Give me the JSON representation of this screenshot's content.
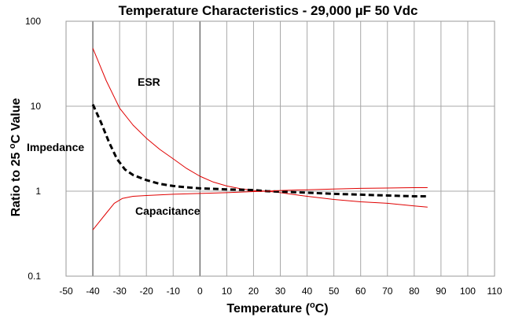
{
  "chart_data": {
    "type": "line",
    "title": "Temperature Characteristics  - 29,000 µF 50 Vdc",
    "xlabel": {
      "prefix": "Temperature (",
      "sup": "o",
      "suffix": "C)"
    },
    "ylabel": {
      "prefix": "Ratio to 25 ",
      "sup": "o",
      "suffix": "C Value"
    },
    "xlim": [
      -50,
      110
    ],
    "ylim": [
      0.1,
      100
    ],
    "y_scale": "log",
    "grid": true,
    "x_ticks": [
      "-50",
      "-40",
      "-30",
      "-20",
      "-10",
      "0",
      "10",
      "20",
      "30",
      "40",
      "50",
      "60",
      "70",
      "80",
      "90",
      "100",
      "110"
    ],
    "y_ticks": [
      {
        "value": 0.1,
        "label": "0.1"
      },
      {
        "value": 1,
        "label": "1"
      },
      {
        "value": 10,
        "label": "10"
      },
      {
        "value": 100,
        "label": "100"
      }
    ],
    "series": [
      {
        "name": "ESR",
        "color": "#e00000",
        "style": "solid",
        "points": [
          [
            -40,
            48
          ],
          [
            -35,
            20
          ],
          [
            -30,
            9.5
          ],
          [
            -25,
            6
          ],
          [
            -20,
            4.2
          ],
          [
            -15,
            3.1
          ],
          [
            -10,
            2.4
          ],
          [
            -5,
            1.85
          ],
          [
            0,
            1.5
          ],
          [
            5,
            1.28
          ],
          [
            10,
            1.15
          ],
          [
            15,
            1.07
          ],
          [
            20,
            1.02
          ],
          [
            25,
            1.0
          ],
          [
            30,
            0.96
          ],
          [
            40,
            0.87
          ],
          [
            50,
            0.8
          ],
          [
            60,
            0.75
          ],
          [
            70,
            0.72
          ],
          [
            80,
            0.67
          ],
          [
            85,
            0.65
          ]
        ]
      },
      {
        "name": "Impedance",
        "color": "#000000",
        "style": "dashed",
        "points": [
          [
            -40,
            10.5
          ],
          [
            -37,
            6.5
          ],
          [
            -34,
            3.8
          ],
          [
            -31,
            2.4
          ],
          [
            -28,
            1.8
          ],
          [
            -25,
            1.55
          ],
          [
            -20,
            1.35
          ],
          [
            -15,
            1.22
          ],
          [
            -10,
            1.15
          ],
          [
            -5,
            1.11
          ],
          [
            0,
            1.08
          ],
          [
            10,
            1.05
          ],
          [
            20,
            1.03
          ],
          [
            25,
            1.0
          ],
          [
            30,
            0.99
          ],
          [
            40,
            0.96
          ],
          [
            50,
            0.93
          ],
          [
            60,
            0.91
          ],
          [
            70,
            0.89
          ],
          [
            80,
            0.87
          ],
          [
            85,
            0.87
          ]
        ]
      },
      {
        "name": "Capacitance",
        "color": "#e00000",
        "style": "solid",
        "points": [
          [
            -40,
            0.35
          ],
          [
            -38,
            0.42
          ],
          [
            -35,
            0.55
          ],
          [
            -32,
            0.72
          ],
          [
            -29,
            0.82
          ],
          [
            -25,
            0.87
          ],
          [
            -20,
            0.89
          ],
          [
            -10,
            0.92
          ],
          [
            0,
            0.94
          ],
          [
            10,
            0.96
          ],
          [
            20,
            0.99
          ],
          [
            25,
            1.0
          ],
          [
            30,
            1.02
          ],
          [
            40,
            1.04
          ],
          [
            50,
            1.06
          ],
          [
            60,
            1.08
          ],
          [
            70,
            1.09
          ],
          [
            80,
            1.1
          ],
          [
            85,
            1.1
          ]
        ]
      }
    ],
    "annotations": [
      "ESR",
      "Impedance",
      "Capacitance"
    ]
  }
}
